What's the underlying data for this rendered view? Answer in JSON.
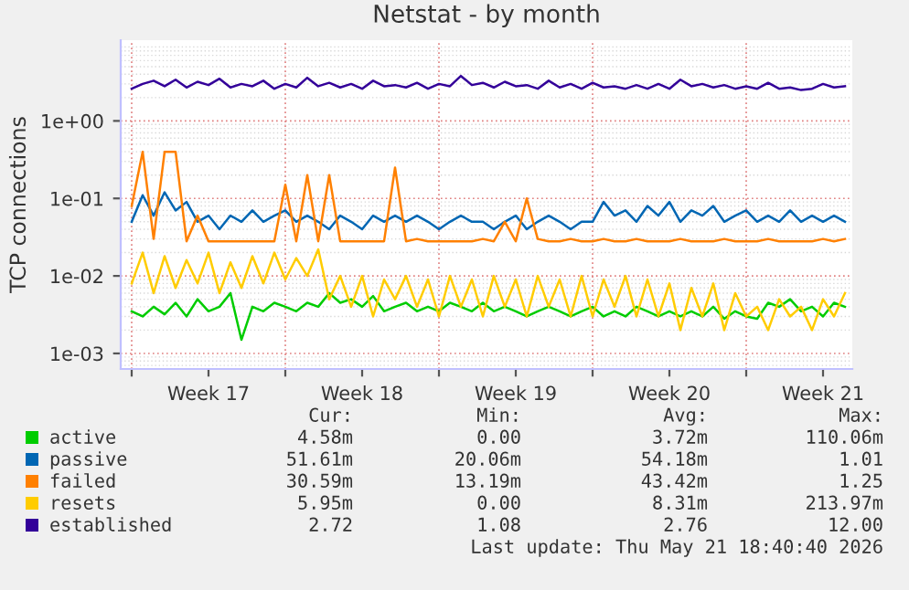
{
  "chart_data": {
    "type": "line",
    "title": "Netstat - by month",
    "ylabel": "TCP connections",
    "x": [
      "2026-04-20T00:00",
      "2026-04-20T12:00",
      "2026-04-21T00:00",
      "2026-04-21T12:00",
      "2026-04-22T00:00",
      "2026-04-22T12:00",
      "2026-04-23T00:00",
      "2026-04-23T12:00",
      "2026-04-24T00:00",
      "2026-04-24T12:00",
      "2026-04-25T00:00",
      "2026-04-25T12:00",
      "2026-04-26T00:00",
      "2026-04-26T12:00",
      "2026-04-27T00:00",
      "2026-04-27T12:00",
      "2026-04-28T00:00",
      "2026-04-28T12:00",
      "2026-04-29T00:00",
      "2026-04-29T12:00",
      "2026-04-30T00:00",
      "2026-04-30T12:00",
      "2026-05-01T00:00",
      "2026-05-01T12:00",
      "2026-05-02T00:00",
      "2026-05-02T12:00",
      "2026-05-03T00:00",
      "2026-05-03T12:00",
      "2026-05-04T00:00",
      "2026-05-04T12:00",
      "2026-05-05T00:00",
      "2026-05-05T12:00",
      "2026-05-06T00:00",
      "2026-05-06T12:00",
      "2026-05-07T00:00",
      "2026-05-07T12:00",
      "2026-05-08T00:00",
      "2026-05-08T12:00",
      "2026-05-09T00:00",
      "2026-05-09T12:00",
      "2026-05-10T00:00",
      "2026-05-10T12:00",
      "2026-05-11T00:00",
      "2026-05-11T12:00",
      "2026-05-12T00:00",
      "2026-05-12T12:00",
      "2026-05-13T00:00",
      "2026-05-13T12:00",
      "2026-05-14T00:00",
      "2026-05-14T12:00",
      "2026-05-15T00:00",
      "2026-05-15T12:00",
      "2026-05-16T00:00",
      "2026-05-16T12:00",
      "2026-05-17T00:00",
      "2026-05-17T12:00",
      "2026-05-18T00:00",
      "2026-05-18T12:00",
      "2026-05-19T00:00",
      "2026-05-19T12:00",
      "2026-05-20T00:00",
      "2026-05-20T12:00",
      "2026-05-21T00:00",
      "2026-05-21T12:00",
      "2026-05-22T00:00",
      "2026-05-22T12:00"
    ],
    "series": [
      {
        "name": "active",
        "color": "#00cc00",
        "values": [
          0.0035,
          0.003,
          0.004,
          0.0032,
          0.0045,
          0.003,
          0.005,
          0.0035,
          0.004,
          0.006,
          0.0015,
          0.004,
          0.0035,
          0.0045,
          0.004,
          0.0035,
          0.0045,
          0.004,
          0.006,
          0.0045,
          0.005,
          0.004,
          0.0055,
          0.0035,
          0.004,
          0.0045,
          0.0035,
          0.004,
          0.0035,
          0.0045,
          0.004,
          0.0035,
          0.0045,
          0.0035,
          0.004,
          0.0035,
          0.003,
          0.0035,
          0.004,
          0.0035,
          0.003,
          0.0035,
          0.004,
          0.003,
          0.0035,
          0.003,
          0.004,
          0.0035,
          0.003,
          0.0035,
          0.003,
          0.0035,
          0.003,
          0.004,
          0.0028,
          0.0035,
          0.003,
          0.0028,
          0.0045,
          0.004,
          0.005,
          0.0035,
          0.004,
          0.003,
          0.0045,
          0.004
        ]
      },
      {
        "name": "passive",
        "color": "#0066b3",
        "values": [
          0.05,
          0.11,
          0.06,
          0.12,
          0.07,
          0.09,
          0.05,
          0.06,
          0.04,
          0.06,
          0.05,
          0.07,
          0.05,
          0.06,
          0.07,
          0.05,
          0.06,
          0.05,
          0.04,
          0.06,
          0.05,
          0.04,
          0.06,
          0.05,
          0.06,
          0.05,
          0.06,
          0.05,
          0.04,
          0.05,
          0.06,
          0.05,
          0.05,
          0.04,
          0.05,
          0.06,
          0.04,
          0.05,
          0.06,
          0.05,
          0.04,
          0.05,
          0.05,
          0.09,
          0.06,
          0.07,
          0.05,
          0.08,
          0.06,
          0.09,
          0.05,
          0.07,
          0.06,
          0.08,
          0.05,
          0.06,
          0.07,
          0.05,
          0.06,
          0.05,
          0.07,
          0.05,
          0.06,
          0.05,
          0.06,
          0.05
        ]
      },
      {
        "name": "failed",
        "color": "#ff8000",
        "values": [
          0.08,
          0.4,
          0.03,
          0.4,
          0.4,
          0.028,
          0.06,
          0.028,
          0.028,
          0.028,
          0.028,
          0.028,
          0.028,
          0.028,
          0.15,
          0.028,
          0.2,
          0.028,
          0.2,
          0.028,
          0.028,
          0.028,
          0.028,
          0.028,
          0.25,
          0.028,
          0.03,
          0.028,
          0.028,
          0.028,
          0.028,
          0.028,
          0.03,
          0.028,
          0.05,
          0.028,
          0.1,
          0.03,
          0.028,
          0.028,
          0.03,
          0.028,
          0.028,
          0.03,
          0.028,
          0.028,
          0.03,
          0.028,
          0.028,
          0.028,
          0.03,
          0.028,
          0.028,
          0.028,
          0.03,
          0.028,
          0.028,
          0.028,
          0.03,
          0.028,
          0.028,
          0.028,
          0.028,
          0.03,
          0.028,
          0.03
        ]
      },
      {
        "name": "resets",
        "color": "#ffcc00",
        "values": [
          0.008,
          0.02,
          0.006,
          0.018,
          0.007,
          0.016,
          0.008,
          0.02,
          0.006,
          0.015,
          0.007,
          0.018,
          0.008,
          0.02,
          0.009,
          0.017,
          0.01,
          0.022,
          0.005,
          0.01,
          0.004,
          0.01,
          0.003,
          0.009,
          0.005,
          0.01,
          0.004,
          0.009,
          0.003,
          0.01,
          0.004,
          0.009,
          0.003,
          0.01,
          0.004,
          0.009,
          0.003,
          0.01,
          0.004,
          0.009,
          0.003,
          0.01,
          0.003,
          0.009,
          0.004,
          0.01,
          0.003,
          0.009,
          0.003,
          0.008,
          0.002,
          0.007,
          0.003,
          0.008,
          0.002,
          0.006,
          0.003,
          0.004,
          0.002,
          0.005,
          0.003,
          0.004,
          0.002,
          0.005,
          0.003,
          0.006
        ]
      },
      {
        "name": "established",
        "color": "#330099",
        "values": [
          2.6,
          3.0,
          3.3,
          2.8,
          3.4,
          2.7,
          3.2,
          2.9,
          3.5,
          2.7,
          3.0,
          2.8,
          3.3,
          2.6,
          3.0,
          2.7,
          3.6,
          2.8,
          3.1,
          2.7,
          3.0,
          2.6,
          3.3,
          2.8,
          2.9,
          2.7,
          3.1,
          2.6,
          3.0,
          2.8,
          3.8,
          2.9,
          3.1,
          2.7,
          3.2,
          2.8,
          2.9,
          2.6,
          3.3,
          2.7,
          3.0,
          2.6,
          3.1,
          2.7,
          2.8,
          2.6,
          2.9,
          2.6,
          3.0,
          2.6,
          3.4,
          2.8,
          3.0,
          2.7,
          2.9,
          2.6,
          2.8,
          2.6,
          3.1,
          2.6,
          2.7,
          2.5,
          2.6,
          3.0,
          2.7,
          2.8
        ]
      }
    ],
    "log": "y",
    "ylim": [
      0.00063,
      11
    ],
    "yticks": [
      {
        "value": 0.001,
        "label": "1e-03"
      },
      {
        "value": 0.01,
        "label": "1e-02"
      },
      {
        "value": 0.1,
        "label": "1e-01"
      },
      {
        "value": 1,
        "label": "1e+00"
      }
    ],
    "xlim": [
      "2026-04-19T12:00",
      "2026-05-22T20:00"
    ],
    "xticks": [
      {
        "value": "2026-04-20T00:00",
        "label": null
      },
      {
        "value": "2026-04-23T12:00",
        "label": "Week 17"
      },
      {
        "value": "2026-04-27T00:00",
        "label": null
      },
      {
        "value": "2026-04-30T12:00",
        "label": "Week 18"
      },
      {
        "value": "2026-05-04T00:00",
        "label": null
      },
      {
        "value": "2026-05-07T12:00",
        "label": "Week 19"
      },
      {
        "value": "2026-05-11T00:00",
        "label": null
      },
      {
        "value": "2026-05-14T12:00",
        "label": "Week 20"
      },
      {
        "value": "2026-05-18T00:00",
        "label": null
      },
      {
        "value": "2026-05-21T12:00",
        "label": "Week 21"
      }
    ],
    "grid": true,
    "legend": "bottom",
    "marker": "none",
    "line_style": "solid",
    "annotations": [
      "Cur:",
      "Min:",
      "Avg:",
      "Max:",
      "4.58m",
      "0.00",
      "3.72m",
      "110.06m",
      "51.61m",
      "20.06m",
      "54.18m",
      "1.01",
      "30.59m",
      "13.19m",
      "43.42m",
      "1.25",
      "5.95m",
      "0.00",
      "8.31m",
      "213.97m",
      "2.72",
      "1.08",
      "2.76",
      "12.00",
      "Last update: Thu May 21 18:40:40 2026"
    ]
  }
}
